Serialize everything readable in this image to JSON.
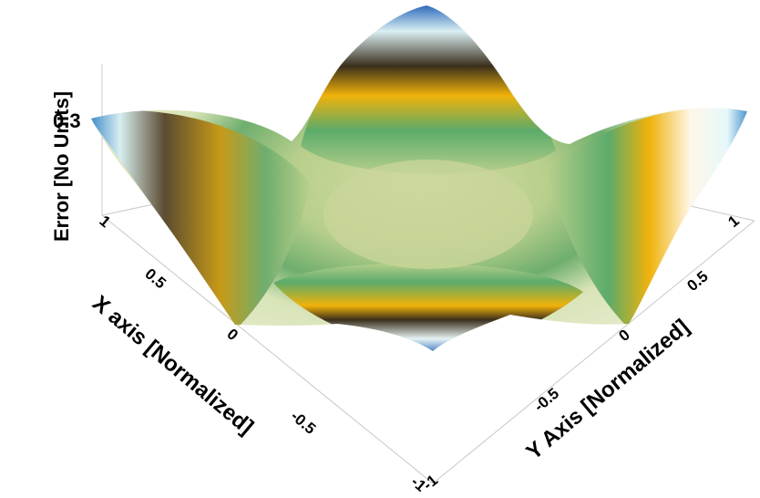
{
  "chart_data": {
    "type": "surface",
    "title": "",
    "zlabel": "Error [No Units]",
    "xlabel": "X axis [Normalized]",
    "ylabel": "Y Axis [Normalized]",
    "x_ticks": [
      "1",
      "0.5",
      "0",
      "-0.5",
      "-1"
    ],
    "y_ticks": [
      "1",
      "0.5",
      "0",
      "-0.5",
      "-1"
    ],
    "z_ticks": [
      "0.3"
    ],
    "xlim": [
      -1,
      1
    ],
    "ylim": [
      -1,
      1
    ],
    "zlim": [
      0,
      0.3
    ],
    "grid": false,
    "legend": "none",
    "surface_samples": {
      "grid": [
        -1,
        -0.5,
        0,
        0.5,
        1
      ],
      "z_rows": [
        [
          0.3,
          0.16,
          0.05,
          0.16,
          0.3
        ],
        [
          0.16,
          0.09,
          0.06,
          0.09,
          0.16
        ],
        [
          0.05,
          0.06,
          0.08,
          0.06,
          0.05
        ],
        [
          0.16,
          0.09,
          0.06,
          0.09,
          0.16
        ],
        [
          0.3,
          0.16,
          0.05,
          0.16,
          0.3
        ]
      ]
    },
    "colors": {
      "peak": "#0a4fb0",
      "high": "#dff3f7",
      "upper_mid": "#f2b00a",
      "mid": "#3b2f1c",
      "low": "#5cab6a",
      "base": "#cfd8a0",
      "floor_frame": "#c8c8c8"
    }
  }
}
